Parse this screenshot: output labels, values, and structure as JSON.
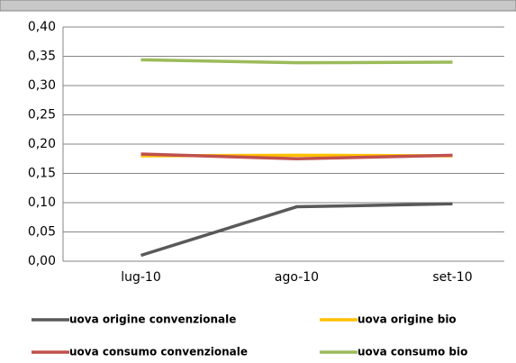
{
  "chart_data": {
    "type": "line",
    "categories": [
      "lug-10",
      "ago-10",
      "set-10"
    ],
    "series": [
      {
        "name": "uova origine convenzionale",
        "color": "#595959",
        "values": [
          0.01,
          0.093,
          0.098
        ]
      },
      {
        "name": "uova origine bio",
        "color": "#ffc000",
        "values": [
          0.18,
          0.181,
          0.18
        ]
      },
      {
        "name": "uova consumo convenzionale",
        "color": "#c0504d",
        "values": [
          0.183,
          0.175,
          0.181
        ]
      },
      {
        "name": "uova consumo bio",
        "color": "#9bbb59",
        "values": [
          0.344,
          0.339,
          0.34
        ]
      }
    ],
    "ylim": [
      0,
      0.4
    ],
    "yticks": [
      {
        "value": 0,
        "label": "0,00"
      },
      {
        "value": 0.05,
        "label": "0,05"
      },
      {
        "value": 0.1,
        "label": "0,10"
      },
      {
        "value": 0.15,
        "label": "0,15"
      },
      {
        "value": 0.2,
        "label": "0,20"
      },
      {
        "value": 0.25,
        "label": "0,25"
      },
      {
        "value": 0.3,
        "label": "0,30"
      },
      {
        "value": 0.35,
        "label": "0,35"
      },
      {
        "value": 0.4,
        "label": "0,40"
      }
    ],
    "grid": true,
    "legend": "bottom"
  }
}
